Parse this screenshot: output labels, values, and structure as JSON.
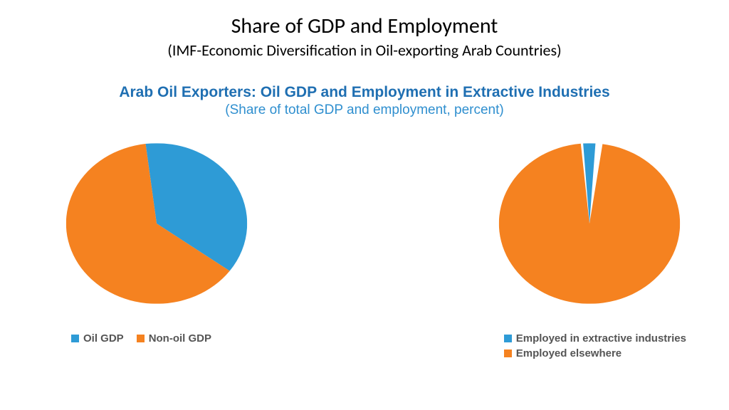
{
  "header": {
    "title": "Share of GDP and Employment",
    "subtitle": "(IMF-Economic Diversification in Oil-exporting Arab Countries)"
  },
  "section": {
    "title": "Arab Oil Exporters: Oil GDP and Employment in Extractive Industries",
    "title_color": "#1f6fb2",
    "subtitle": "(Share of total GDP and employment, percent)",
    "subtitle_color": "#2f8fcf"
  },
  "charts": {
    "gdp": {
      "type": "pie",
      "diameter": 240,
      "scaleX": 1.06,
      "scaleY": 0.94,
      "rotation_start_deg": -7,
      "pull_gap_deg": 0,
      "background_color": "#ffffff",
      "slices": [
        {
          "label": "Oil GDP",
          "value": 37,
          "color": "#2e9bd6"
        },
        {
          "label": "Non-oil GDP",
          "value": 63,
          "color": "#f58220"
        }
      ],
      "legend_layout": "horizontal",
      "legend_font_color": "#555555"
    },
    "employment": {
      "type": "pie",
      "diameter": 240,
      "scaleX": 1.06,
      "scaleY": 0.94,
      "rotation_start_deg": -4,
      "pull_gap_deg": 3,
      "background_color": "#ffffff",
      "slices": [
        {
          "label": "Employed in extractive industries",
          "value": 3,
          "color": "#2e9bd6"
        },
        {
          "label": "Employed elsewhere",
          "value": 97,
          "color": "#f58220"
        }
      ],
      "legend_layout": "vertical",
      "legend_font_color": "#555555"
    }
  }
}
